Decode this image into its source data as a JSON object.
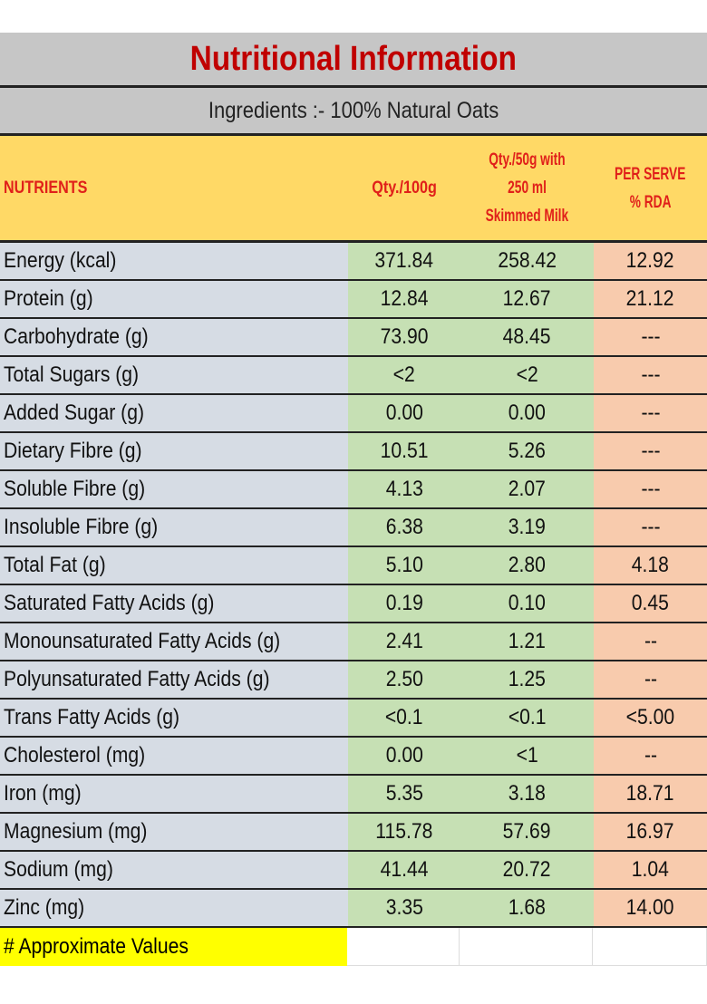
{
  "title": "Nutritional Information",
  "ingredients": "Ingredients :- 100% Natural Oats",
  "headers": {
    "nutrients": "NUTRIENTS",
    "qty100": "Qty./100g",
    "qty50_l1": "Qty./50g with",
    "qty50_l2": "250 ml",
    "qty50_l3": "Skimmed Milk",
    "rda_l1": "PER SERVE",
    "rda_l2": "% RDA"
  },
  "rows": [
    [
      "Energy (kcal)",
      "371.84",
      "258.42",
      "12.92"
    ],
    [
      "Protein (g)",
      "12.84",
      "12.67",
      "21.12"
    ],
    [
      "Carbohydrate (g)",
      "73.90",
      "48.45",
      "---"
    ],
    [
      "Total Sugars (g)",
      "<2",
      "<2",
      "---"
    ],
    [
      "Added Sugar (g)",
      "0.00",
      "0.00",
      "---"
    ],
    [
      "Dietary Fibre (g)",
      "10.51",
      "5.26",
      "---"
    ],
    [
      "Soluble Fibre (g)",
      "4.13",
      "2.07",
      "---"
    ],
    [
      "Insoluble Fibre (g)",
      "6.38",
      "3.19",
      "---"
    ],
    [
      "Total Fat (g)",
      "5.10",
      "2.80",
      "4.18"
    ],
    [
      "Saturated Fatty Acids (g)",
      "0.19",
      "0.10",
      "0.45"
    ],
    [
      "Monounsaturated Fatty Acids (g)",
      "2.41",
      "1.21",
      "--"
    ],
    [
      "Polyunsaturated Fatty Acids (g)",
      "2.50",
      "1.25",
      "--"
    ],
    [
      "Trans Fatty Acids (g)",
      "<0.1",
      "<0.1",
      "<5.00"
    ],
    [
      "Cholesterol (mg)",
      "0.00",
      "<1",
      "--"
    ],
    [
      "Iron (mg)",
      "5.35",
      "3.18",
      "18.71"
    ],
    [
      "Magnesium (mg)",
      "115.78",
      "57.69",
      "16.97"
    ],
    [
      "Sodium (mg)",
      "41.44",
      "20.72",
      "1.04"
    ],
    [
      "Zinc (mg)",
      "3.35",
      "1.68",
      "14.00"
    ]
  ],
  "footnote": "# Approximate Values",
  "colors": {
    "title": "#c00000",
    "header_bg": "#ffd966",
    "header_text": "#e0201a",
    "name_bg": "#d6dce4",
    "qty_bg": "#c6e0b4",
    "rda_bg": "#f8cbad",
    "footnote_bg": "#ffff00"
  }
}
